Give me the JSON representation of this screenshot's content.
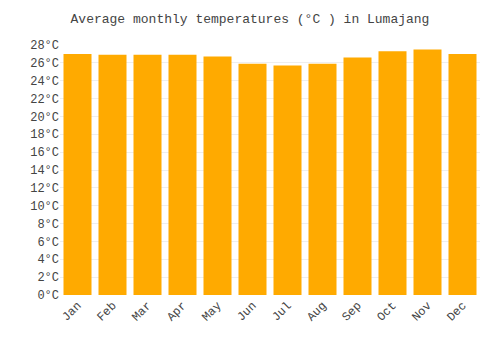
{
  "chart_data": {
    "type": "bar",
    "title": "Average monthly temperatures (°C ) in Lumajang",
    "categories": [
      "Jan",
      "Feb",
      "Mar",
      "Apr",
      "May",
      "Jun",
      "Jul",
      "Aug",
      "Sep",
      "Oct",
      "Nov",
      "Dec"
    ],
    "values": [
      27.0,
      26.9,
      26.9,
      26.9,
      26.7,
      25.9,
      25.7,
      25.9,
      26.6,
      27.3,
      27.5,
      27.0
    ],
    "color": "#FFAA00",
    "ylim": [
      0,
      28
    ],
    "yticks": [
      {
        "value": 0,
        "label": "0°C"
      },
      {
        "value": 2,
        "label": "2°C"
      },
      {
        "value": 4,
        "label": "4°C"
      },
      {
        "value": 6,
        "label": "6°C"
      },
      {
        "value": 8,
        "label": "8°C"
      },
      {
        "value": 10,
        "label": "10°C"
      },
      {
        "value": 12,
        "label": "12°C"
      },
      {
        "value": 14,
        "label": "14°C"
      },
      {
        "value": 16,
        "label": "16°C"
      },
      {
        "value": 18,
        "label": "18°C"
      },
      {
        "value": 20,
        "label": "20°C"
      },
      {
        "value": 22,
        "label": "22°C"
      },
      {
        "value": 24,
        "label": "24°C"
      },
      {
        "value": 26,
        "label": "26°C"
      },
      {
        "value": 28,
        "label": "28°C"
      }
    ],
    "grid": true
  }
}
